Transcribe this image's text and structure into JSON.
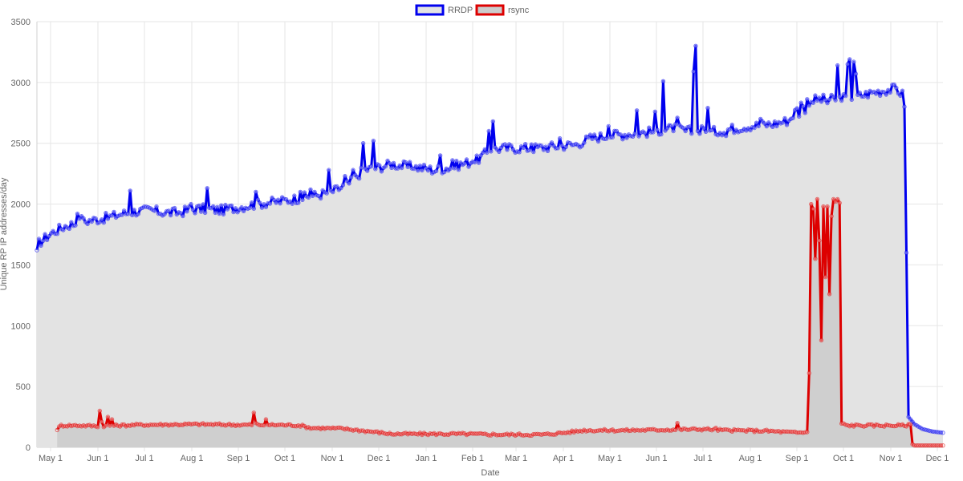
{
  "chart_data": {
    "type": "line",
    "title": "",
    "xlabel": "Date",
    "ylabel": "Unique RP IP addresses/day",
    "ylim": [
      0,
      3500
    ],
    "yticks": [
      0,
      500,
      1000,
      1500,
      2000,
      2500,
      3000,
      3500
    ],
    "x_tick_labels": [
      "May 1",
      "Jun 1",
      "Jul 1",
      "Aug 1",
      "Sep 1",
      "Oct 1",
      "Nov 1",
      "Dec 1",
      "Jan 1",
      "Feb 1",
      "Mar 1",
      "Apr 1",
      "May 1",
      "Jun 1",
      "Jul 1",
      "Aug 1",
      "Sep 1",
      "Oct 1",
      "Nov 1",
      "Dec 1"
    ],
    "x_start": "Apr 24",
    "x_end": "Dec 2",
    "grid": true,
    "legend_position": "top-center",
    "area_fill": true,
    "series": [
      {
        "name": "RRDP",
        "color": "#0000ee",
        "fill": "#e3e3e3",
        "start_day": 0,
        "anchors": [
          [
            0,
            1590
          ],
          [
            1,
            1680
          ],
          [
            7,
            1760
          ],
          [
            14,
            1820
          ],
          [
            21,
            1850
          ],
          [
            28,
            1870
          ],
          [
            35,
            1890
          ],
          [
            42,
            1920
          ],
          [
            49,
            1940
          ],
          [
            56,
            1950
          ],
          [
            63,
            1930
          ],
          [
            70,
            1930
          ],
          [
            77,
            1960
          ],
          [
            84,
            1960
          ],
          [
            91,
            1950
          ],
          [
            98,
            1970
          ],
          [
            105,
            1990
          ],
          [
            112,
            2010
          ],
          [
            119,
            2020
          ],
          [
            126,
            2040
          ],
          [
            133,
            2060
          ],
          [
            140,
            2080
          ],
          [
            147,
            2110
          ],
          [
            154,
            2170
          ],
          [
            161,
            2280
          ],
          [
            168,
            2300
          ],
          [
            175,
            2330
          ],
          [
            182,
            2310
          ],
          [
            189,
            2300
          ],
          [
            196,
            2280
          ],
          [
            203,
            2300
          ],
          [
            210,
            2330
          ],
          [
            217,
            2360
          ],
          [
            224,
            2450
          ],
          [
            231,
            2460
          ],
          [
            238,
            2460
          ],
          [
            245,
            2460
          ],
          [
            252,
            2470
          ],
          [
            259,
            2480
          ],
          [
            266,
            2490
          ],
          [
            273,
            2540
          ],
          [
            280,
            2560
          ],
          [
            287,
            2570
          ],
          [
            294,
            2580
          ],
          [
            301,
            2590
          ],
          [
            308,
            2610
          ],
          [
            315,
            2620
          ],
          [
            322,
            2600
          ],
          [
            329,
            2590
          ],
          [
            336,
            2600
          ],
          [
            343,
            2620
          ],
          [
            350,
            2640
          ],
          [
            357,
            2650
          ],
          [
            364,
            2660
          ],
          [
            371,
            2690
          ],
          [
            378,
            2840
          ],
          [
            385,
            2860
          ],
          [
            392,
            2860
          ],
          [
            399,
            2870
          ],
          [
            406,
            2890
          ],
          [
            413,
            2920
          ],
          [
            420,
            2940
          ],
          [
            424,
            2950
          ],
          [
            427,
            2900
          ],
          [
            428,
            2800
          ],
          [
            429,
            1600
          ],
          [
            430,
            250
          ],
          [
            433,
            190
          ],
          [
            437,
            150
          ],
          [
            442,
            130
          ],
          [
            447,
            120
          ]
        ],
        "spikes": [
          [
            20,
            1920
          ],
          [
            22,
            1900
          ],
          [
            46,
            2110
          ],
          [
            76,
            2000
          ],
          [
            84,
            2130
          ],
          [
            108,
            2100
          ],
          [
            130,
            2100
          ],
          [
            135,
            2120
          ],
          [
            144,
            2280
          ],
          [
            152,
            2230
          ],
          [
            156,
            2280
          ],
          [
            159,
            2210
          ],
          [
            161,
            2500
          ],
          [
            166,
            2520
          ],
          [
            186,
            2290
          ],
          [
            199,
            2400
          ],
          [
            205,
            2360
          ],
          [
            215,
            2350
          ],
          [
            223,
            2600
          ],
          [
            225,
            2680
          ],
          [
            244,
            2490
          ],
          [
            258,
            2540
          ],
          [
            282,
            2640
          ],
          [
            286,
            2600
          ],
          [
            296,
            2770
          ],
          [
            305,
            2760
          ],
          [
            309,
            3010
          ],
          [
            314,
            2600
          ],
          [
            316,
            2710
          ],
          [
            320,
            2600
          ],
          [
            324,
            3090
          ],
          [
            325,
            3300
          ],
          [
            328,
            2640
          ],
          [
            331,
            2790
          ],
          [
            340,
            2560
          ],
          [
            357,
            2700
          ],
          [
            376,
            2720
          ],
          [
            379,
            2750
          ],
          [
            390,
            2830
          ],
          [
            395,
            3140
          ],
          [
            397,
            2850
          ],
          [
            400,
            3150
          ],
          [
            401,
            3190
          ],
          [
            403,
            3170
          ],
          [
            404,
            3070
          ]
        ],
        "noise": 40
      },
      {
        "name": "rsync",
        "color": "#dd0000",
        "fill": "#cccccc",
        "start_day": 10,
        "anchors": [
          [
            10,
            150
          ],
          [
            12,
            180
          ],
          [
            20,
            180
          ],
          [
            30,
            175
          ],
          [
            50,
            185
          ],
          [
            80,
            190
          ],
          [
            100,
            185
          ],
          [
            120,
            185
          ],
          [
            130,
            180
          ],
          [
            135,
            160
          ],
          [
            150,
            155
          ],
          [
            165,
            130
          ],
          [
            175,
            110
          ],
          [
            190,
            110
          ],
          [
            210,
            110
          ],
          [
            230,
            105
          ],
          [
            250,
            105
          ],
          [
            260,
            120
          ],
          [
            270,
            140
          ],
          [
            290,
            140
          ],
          [
            310,
            145
          ],
          [
            330,
            150
          ],
          [
            340,
            140
          ],
          [
            360,
            135
          ],
          [
            375,
            120
          ],
          [
            380,
            125
          ],
          [
            381,
            610
          ],
          [
            382,
            2000
          ],
          [
            383,
            1960
          ],
          [
            384,
            1550
          ],
          [
            385,
            2040
          ],
          [
            386,
            1700
          ],
          [
            387,
            880
          ],
          [
            388,
            1980
          ],
          [
            389,
            1400
          ],
          [
            390,
            1980
          ],
          [
            391,
            1260
          ],
          [
            392,
            1900
          ],
          [
            393,
            2040
          ],
          [
            394,
            2020
          ],
          [
            395,
            2040
          ],
          [
            396,
            2010
          ],
          [
            397,
            195
          ],
          [
            400,
            180
          ],
          [
            410,
            180
          ],
          [
            420,
            180
          ],
          [
            428,
            180
          ],
          [
            431,
            185
          ],
          [
            432,
            25
          ],
          [
            433,
            15
          ],
          [
            447,
            15
          ]
        ],
        "spikes": [
          [
            31,
            300
          ],
          [
            32,
            210
          ],
          [
            35,
            250
          ],
          [
            37,
            230
          ],
          [
            107,
            285
          ],
          [
            108,
            200
          ],
          [
            113,
            230
          ],
          [
            155,
            145
          ],
          [
            167,
            130
          ],
          [
            316,
            200
          ],
          [
            335,
            160
          ]
        ],
        "noise": 10
      }
    ]
  }
}
